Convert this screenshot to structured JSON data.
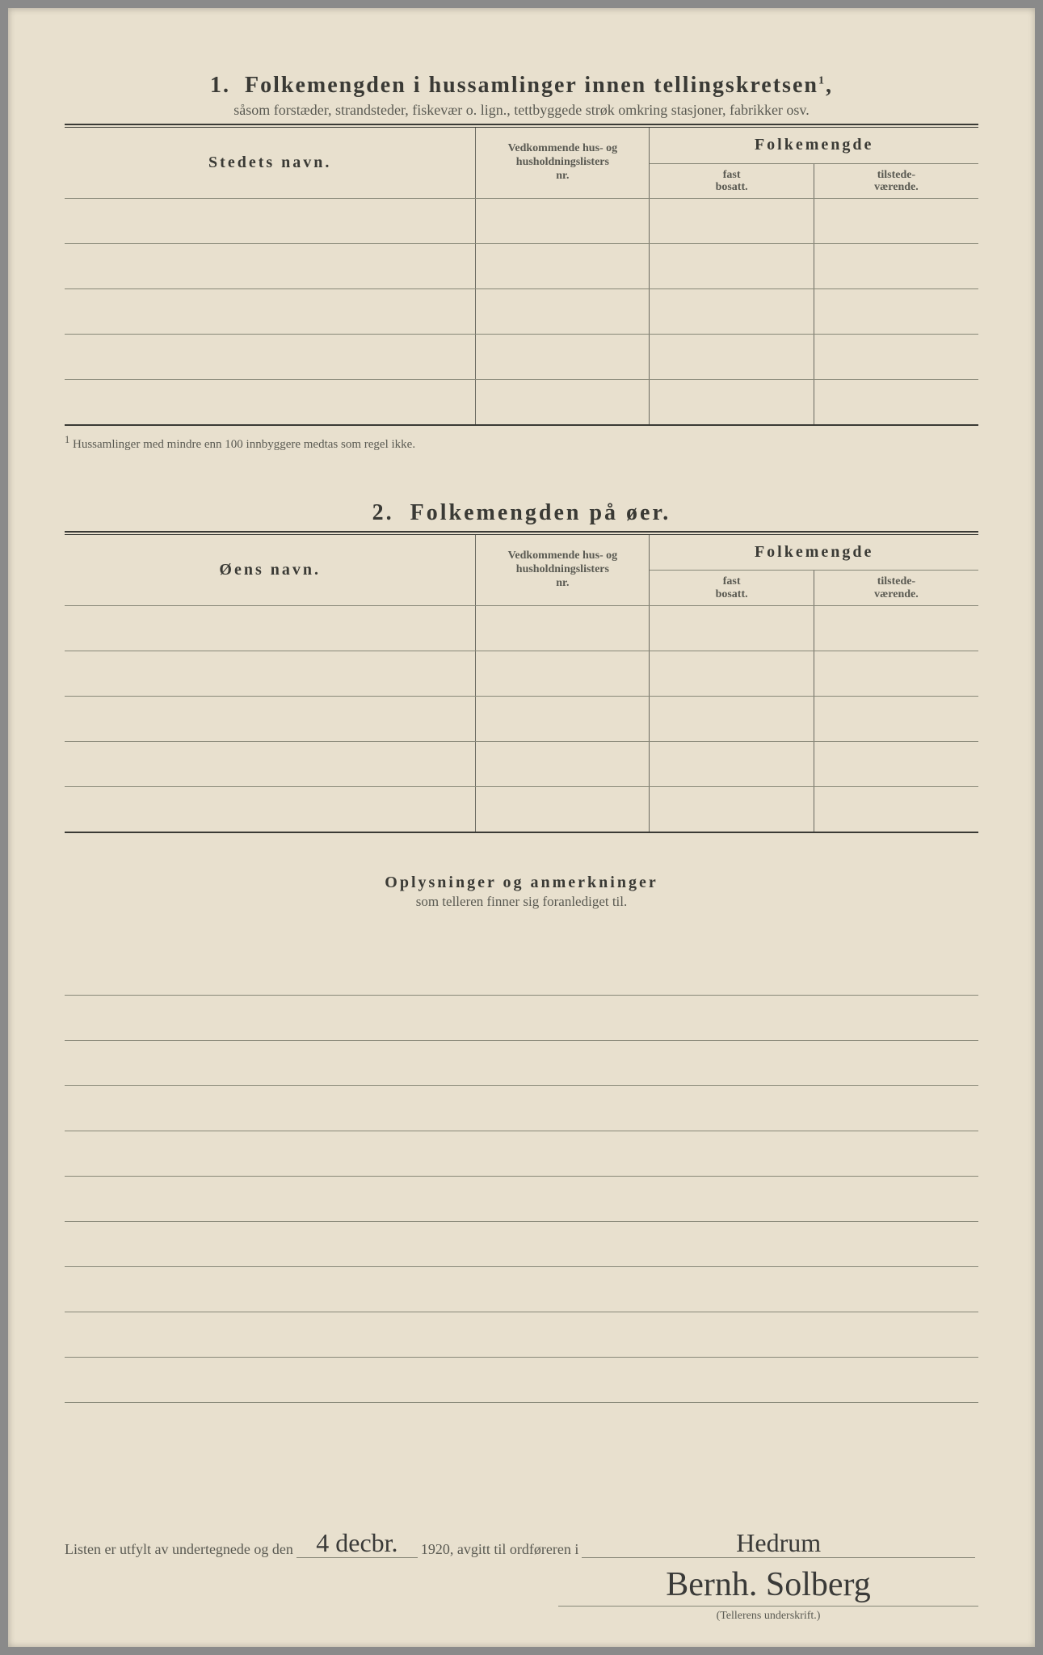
{
  "page_bg": "#e8e0ce",
  "text_color": "#4a4a45",
  "rule_color": "#3a3a35",
  "line_color": "#888878",
  "section1": {
    "number": "1.",
    "title": "Folkemengden i hussamlinger innen tellingskretsen",
    "sup": "1",
    "tail": ",",
    "subtitle": "såsom forstæder, strandsteder, fiskevær o. lign., tettbyggede strøk omkring stasjoner, fabrikker osv.",
    "col_name": "Stedets navn.",
    "col_hus_l1": "Vedkommende hus- og",
    "col_hus_l2": "husholdningslisters",
    "col_hus_l3": "nr.",
    "col_fm": "Folkemengde",
    "col_fast_l1": "fast",
    "col_fast_l2": "bosatt.",
    "col_til_l1": "tilstede-",
    "col_til_l2": "værende.",
    "row_count": 5,
    "footnote_mark": "1",
    "footnote": "Hussamlinger med mindre enn 100 innbyggere medtas som regel ikke."
  },
  "section2": {
    "number": "2.",
    "title": "Folkemengden på øer.",
    "col_name": "Øens navn.",
    "col_hus_l1": "Vedkommende hus- og",
    "col_hus_l2": "husholdningslisters",
    "col_hus_l3": "nr.",
    "col_fm": "Folkemengde",
    "col_fast_l1": "fast",
    "col_fast_l2": "bosatt.",
    "col_til_l1": "tilstede-",
    "col_til_l2": "værende.",
    "row_count": 5
  },
  "section3": {
    "title": "Oplysninger og anmerkninger",
    "subtitle": "som telleren finner sig foranlediget til.",
    "line_count": 10
  },
  "closing": {
    "part1": "Listen er utfylt av undertegnede og den",
    "date_hw": "4 decbr.",
    "year": "1920,",
    "part2": "avgitt til ordføreren i",
    "place_hw": "Hedrum",
    "signature_hw": "Bernh. Solberg",
    "sig_caption": "(Tellerens underskrift.)"
  }
}
